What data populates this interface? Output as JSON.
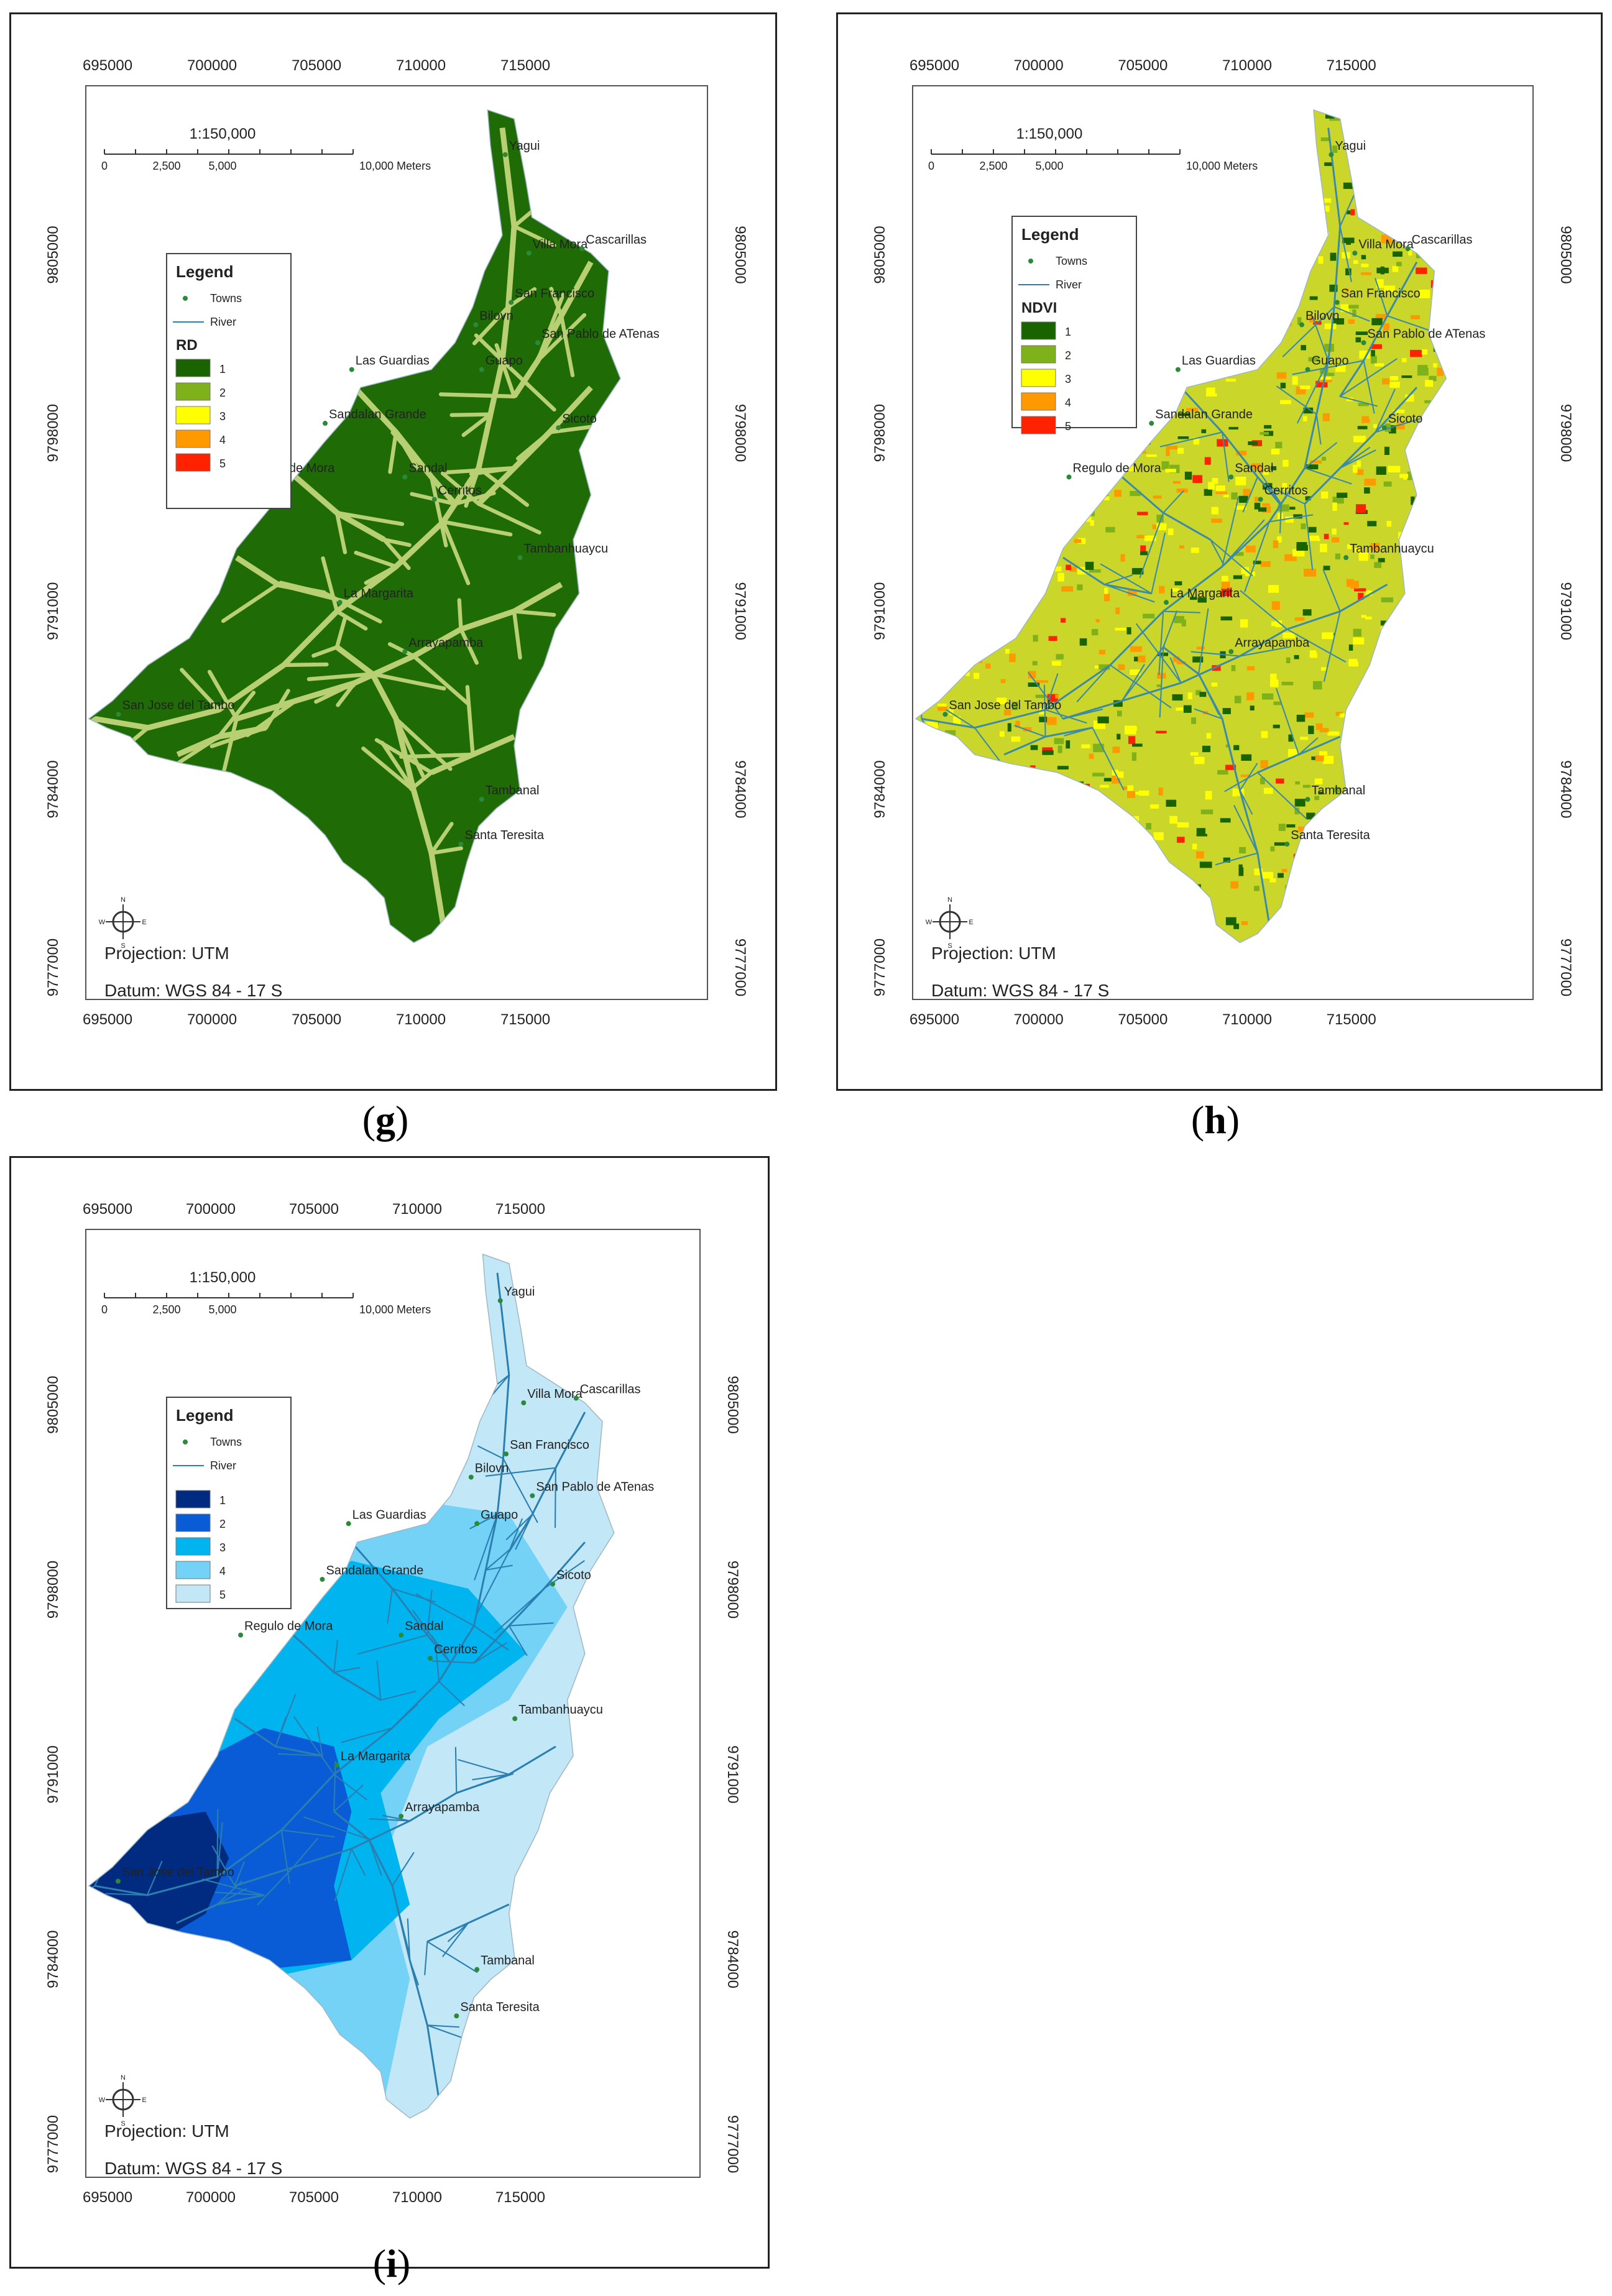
{
  "figure_captions": [
    "g",
    "h",
    "i"
  ],
  "common": {
    "x_ticks": [
      "695000",
      "700000",
      "705000",
      "710000",
      "715000"
    ],
    "y_ticks": [
      "9805000",
      "9798000",
      "9791000",
      "9784000",
      "9777000"
    ],
    "scale_ratio": "1:150,000",
    "scale_labels": [
      "0",
      "2,500",
      "5,000",
      "10,000 Meters"
    ],
    "legend_title": "Legend",
    "towns_label": "Towns",
    "river_label": "River",
    "projection": "Projection: UTM",
    "datum": "Datum: WGS 84 - 17 S",
    "class_labels": [
      "1",
      "2",
      "3",
      "4",
      "5"
    ],
    "compass_letters": [
      "N",
      "S",
      "E",
      "W"
    ],
    "towns": [
      "Yagui",
      "Villa Mora",
      "Cascarillas",
      "San Francisco",
      "Bilovn",
      "San Pablo de ATenas",
      "Las Guardias",
      "Guapo",
      "Sandalan Grande",
      "Sicoto",
      "Regulo de Mora",
      "Sandal",
      "Cerritos",
      "Tambanhuaycu",
      "La Margarita",
      "Arrayapamba",
      "San Jose del Tambo",
      "Tambanal",
      "Santa Teresita"
    ]
  },
  "panels": [
    {
      "id": "g",
      "layer_title": "RD",
      "colors": [
        "#1a6400",
        "#7fb21a",
        "#ffff00",
        "#ff9900",
        "#ff2200"
      ],
      "basin_color": "#1f6b06",
      "river_color": "#b9cf73"
    },
    {
      "id": "h",
      "layer_title": "NDVI",
      "colors": [
        "#1a6400",
        "#7fb21a",
        "#ffff00",
        "#ff9900",
        "#ff2200"
      ],
      "basin_color": "#cbd62a",
      "river_color": "#3a8aa8"
    },
    {
      "id": "i",
      "layer_title": "",
      "colors": [
        "#002b80",
        "#0a5cd6",
        "#00b4f0",
        "#73d2f5",
        "#c2e8f8"
      ],
      "basin_color": "#c2e8f8",
      "river_color": "#2a7fb0"
    }
  ]
}
